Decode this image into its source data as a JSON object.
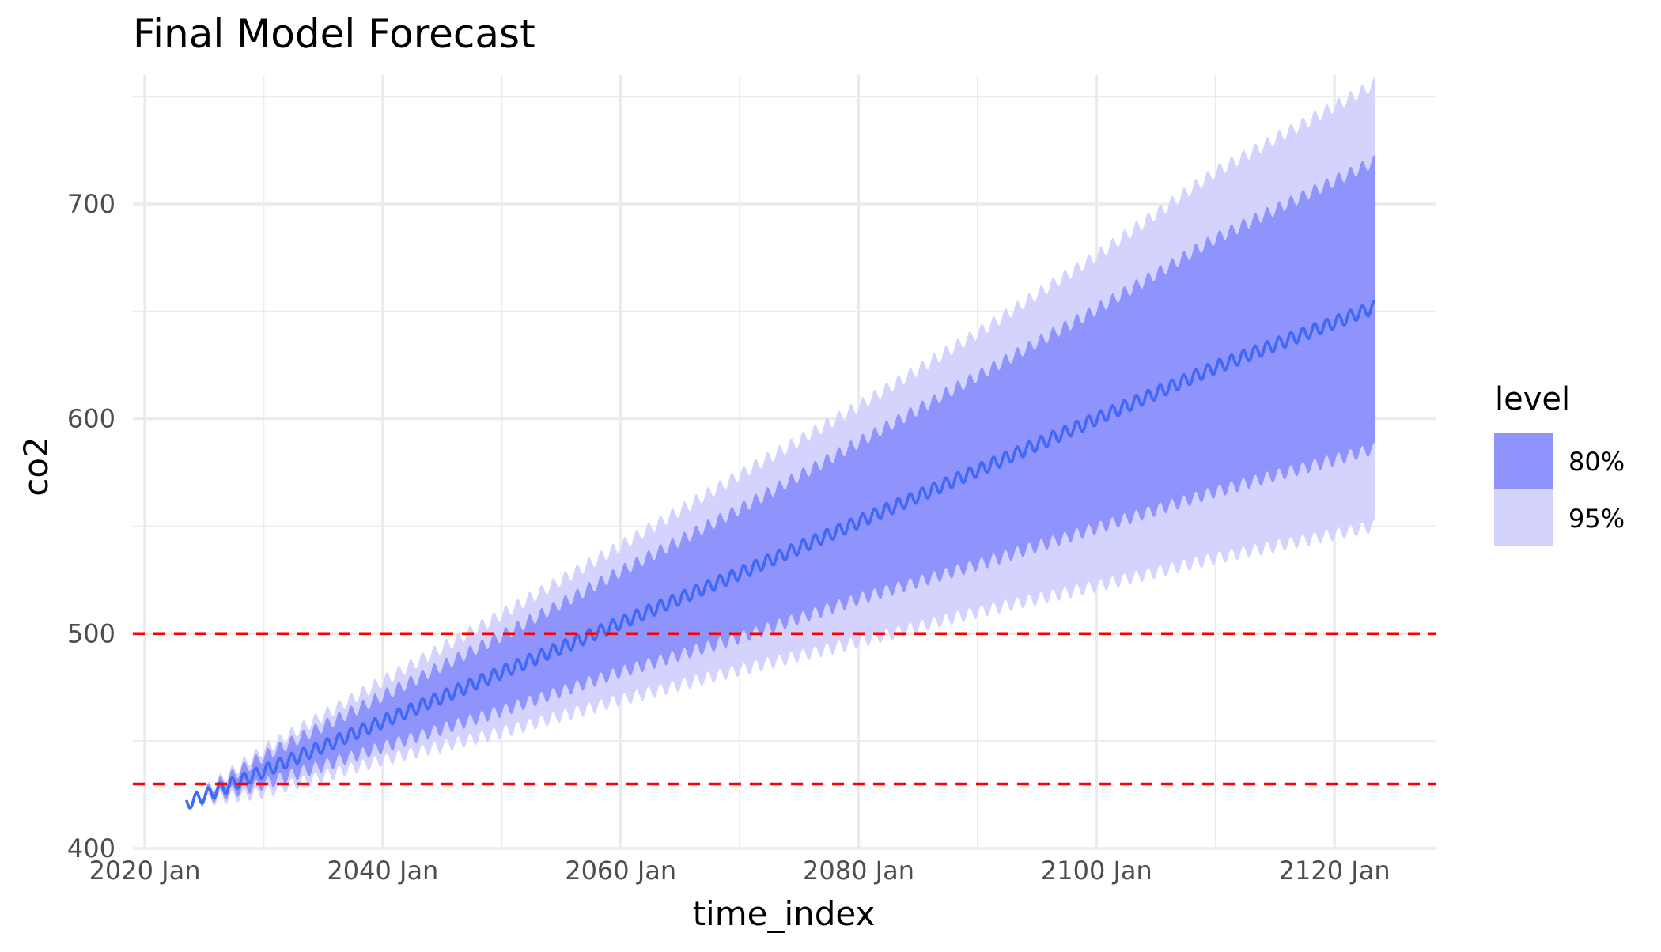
{
  "chart_data": {
    "type": "line",
    "title": "Final Model Forecast",
    "xlabel": "time_index",
    "ylabel": "co2",
    "xlim": [
      "2019-01",
      "2128-07"
    ],
    "ylim": [
      400,
      760
    ],
    "x_ticks": [
      {
        "date": "2020-01",
        "label": "2020 Jan"
      },
      {
        "date": "2040-01",
        "label": "2040 Jan"
      },
      {
        "date": "2060-01",
        "label": "2060 Jan"
      },
      {
        "date": "2080-01",
        "label": "2080 Jan"
      },
      {
        "date": "2100-01",
        "label": "2100 Jan"
      },
      {
        "date": "2120-01",
        "label": "2120 Jan"
      }
    ],
    "y_ticks": [
      400,
      500,
      600,
      700
    ],
    "grid": true,
    "legend": {
      "title": "level",
      "position": "right",
      "entries": [
        {
          "label": "80%",
          "color": "#8f94fc"
        },
        {
          "label": "95%",
          "color": "#d4d3fd"
        }
      ]
    },
    "forecast": {
      "color": "#4169f5",
      "start": "2023-07",
      "end": "2123-06",
      "seasonal_amplitude": 3,
      "points": [
        {
          "x": "2023-07",
          "y": 421,
          "lower80": 421,
          "upper80": 421,
          "lower95": 421,
          "upper95": 421
        },
        {
          "x": "2030-01",
          "y": 436,
          "lower80": 430,
          "upper80": 443,
          "lower95": 426,
          "upper95": 446
        },
        {
          "x": "2040-01",
          "y": 459,
          "lower80": 447,
          "upper80": 471,
          "lower95": 441,
          "upper95": 478
        },
        {
          "x": "2050-01",
          "y": 482,
          "lower80": 464,
          "upper80": 499,
          "lower95": 454,
          "upper95": 509
        },
        {
          "x": "2060-01",
          "y": 505,
          "lower80": 482,
          "upper80": 529,
          "lower95": 469,
          "upper95": 541
        },
        {
          "x": "2070-01",
          "y": 528,
          "lower80": 498,
          "upper80": 558,
          "lower95": 483,
          "upper95": 574
        },
        {
          "x": "2080-01",
          "y": 552,
          "lower80": 516,
          "upper80": 589,
          "lower95": 496,
          "upper95": 606
        },
        {
          "x": "2090-01",
          "y": 576,
          "lower80": 532,
          "upper80": 620,
          "lower95": 510,
          "upper95": 640
        },
        {
          "x": "2100-01",
          "y": 600,
          "lower80": 549,
          "upper80": 651,
          "lower95": 522,
          "upper95": 676
        },
        {
          "x": "2110-01",
          "y": 624,
          "lower80": 566,
          "upper80": 684,
          "lower95": 535,
          "upper95": 715
        },
        {
          "x": "2123-06",
          "y": 652,
          "lower80": 586,
          "upper80": 720,
          "lower95": 550,
          "upper95": 756
        }
      ]
    },
    "reference_lines": [
      {
        "y": 500,
        "color": "#ff0000",
        "style": "dashed"
      },
      {
        "y": 430,
        "color": "#ff0000",
        "style": "dashed"
      }
    ]
  }
}
